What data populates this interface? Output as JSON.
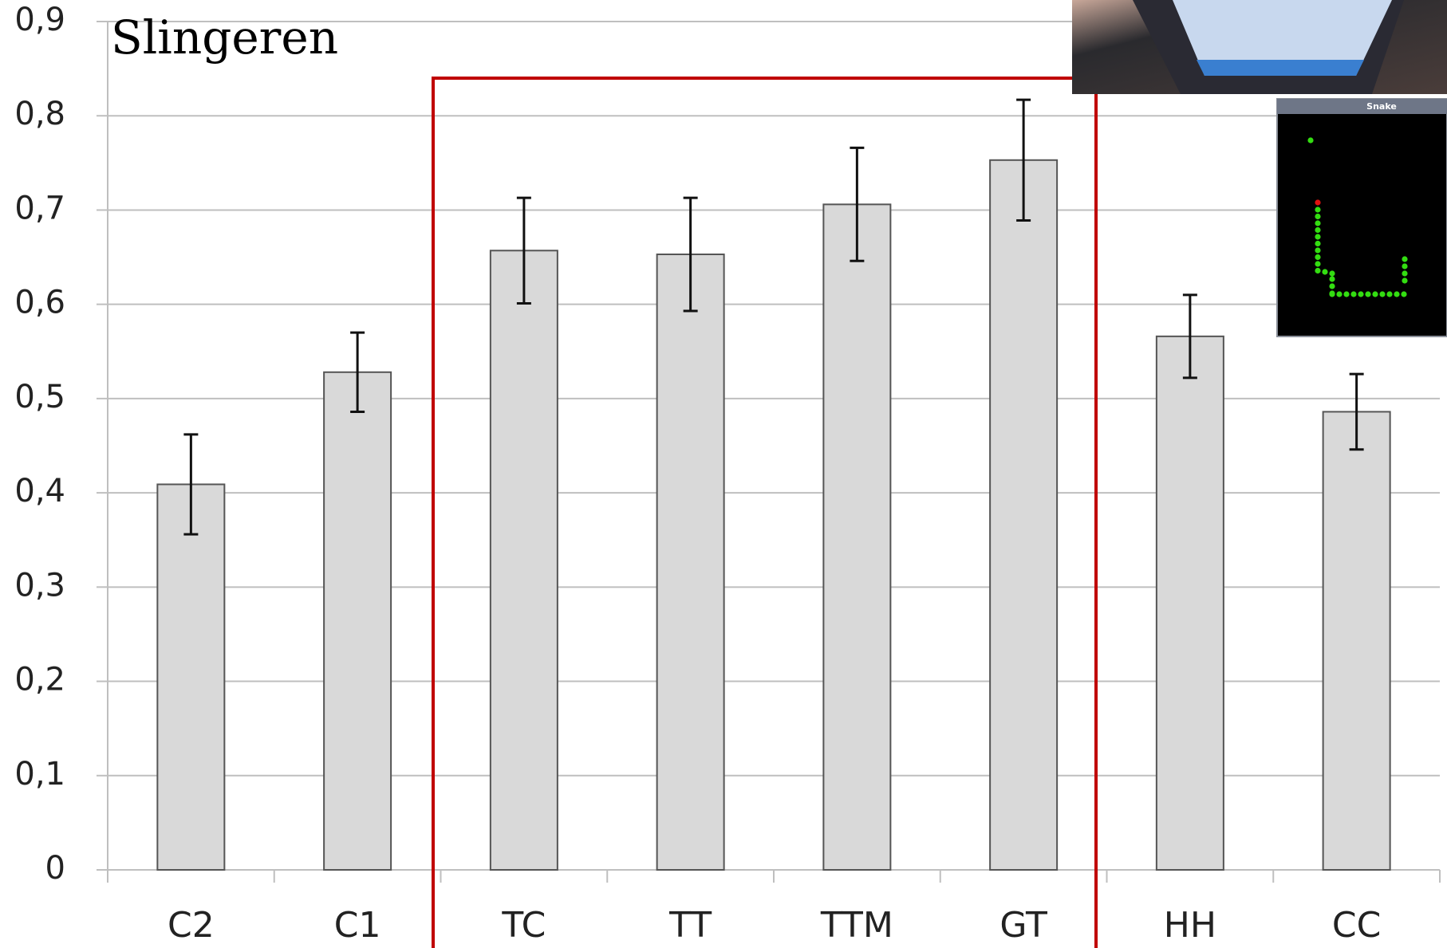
{
  "chart_data": {
    "type": "bar",
    "title": "Slingeren",
    "categories": [
      "C2",
      "C1",
      "TC",
      "TT",
      "TTM",
      "GT",
      "HH",
      "CC"
    ],
    "values": [
      0.409,
      0.528,
      0.657,
      0.653,
      0.706,
      0.753,
      0.566,
      0.486
    ],
    "errors": [
      0.053,
      0.042,
      0.056,
      0.06,
      0.06,
      0.064,
      0.044,
      0.04
    ],
    "color": "#d9d9d9",
    "ylim": [
      0,
      0.9
    ],
    "yticks": [
      0,
      {
        "value": 0.1,
        "label": "0,1"
      },
      {
        "value": 0.2,
        "label": "0,2"
      },
      {
        "value": 0.3,
        "label": "0,3"
      },
      {
        "value": 0.4,
        "label": "0,4"
      },
      {
        "value": 0.5,
        "label": "0,5"
      },
      {
        "value": 0.6,
        "label": "0,6"
      },
      {
        "value": 0.7,
        "label": "0,7"
      },
      {
        "value": 0.8,
        "label": "0,8"
      },
      {
        "value": 0.9,
        "label": "0,9"
      }
    ],
    "grid": true
  },
  "inset": {
    "title": "Snake"
  }
}
